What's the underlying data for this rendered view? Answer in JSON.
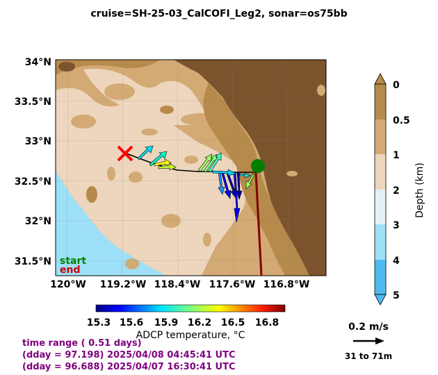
{
  "title": "cruise=SH-25-03_CalCOFI_Leg2,   sonar=os75bb",
  "map": {
    "lat_ticks": [
      "34°N",
      "33.5°N",
      "33°N",
      "32.5°N",
      "32°N",
      "31.5°N"
    ],
    "lon_ticks": [
      "120°W",
      "119.2°W",
      "118.4°W",
      "117.6°W",
      "116.8°W"
    ],
    "legend_start": "start",
    "legend_end": "end",
    "start_color": "#008000",
    "end_color": "#cc0000"
  },
  "depth_colorbar": {
    "ticks": [
      "0",
      "0.5",
      "1",
      "2",
      "3",
      "4",
      "5"
    ],
    "label": "Depth (km)",
    "colors": [
      "#b68a4a",
      "#d3aa74",
      "#edd6bd",
      "#e4f0f7",
      "#9de0f7",
      "#4ebbf0"
    ]
  },
  "temp_colorbar": {
    "ticks": [
      "15.3",
      "15.6",
      "15.9",
      "16.2",
      "16.5",
      "16.8"
    ],
    "label": "ADCP temperature, °C"
  },
  "time_block": {
    "range": "time range ( 0.51 days)",
    "end": "(dday = 97.198) 2025/04/08 04:45:41 UTC",
    "start": "(dday = 96.688) 2025/04/07 16:30:41 UTC"
  },
  "scale": {
    "speed": "0.2 m/s",
    "depth_range": "31 to 71m"
  },
  "colors": {
    "land": "#7b532c",
    "shelf": "#b68a4a",
    "slope": "#d3aa74",
    "light": "#edd6bd",
    "deep": "#9de0f7"
  }
}
